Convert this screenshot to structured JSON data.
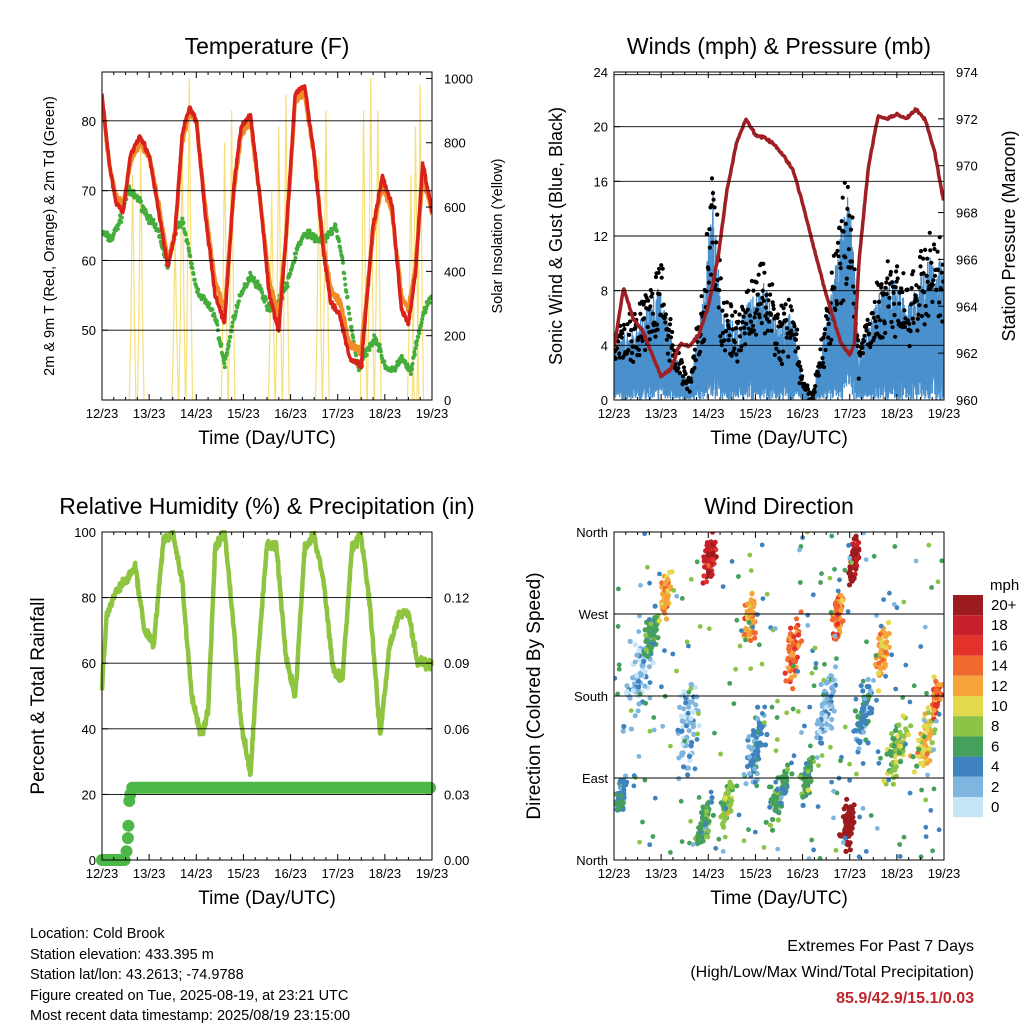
{
  "days": [
    "12/23",
    "13/23",
    "14/23",
    "15/23",
    "16/23",
    "17/23",
    "18/23",
    "19/23"
  ],
  "palette": {
    "red": "#d9221c",
    "orange": "#f28c28",
    "green": "#44ad3c",
    "yellow": "#f7e07a",
    "blue": "#4a90cc",
    "black": "#000000",
    "maroon": "#a01f24",
    "rh": "#8ec43f",
    "precip": "#4db847",
    "extreme": "#c0262c"
  },
  "info": {
    "location": "Location: Cold Brook",
    "elevation": "Station elevation: 433.395 m",
    "latlon": "Station lat/lon: 43.2613; -74.9788",
    "created": "Figure created on Tue, 2025-08-19, at 23:21 UTC",
    "recent": "Most recent data timestamp: 2025/08/19 23:15:00"
  },
  "extremes": {
    "title": "Extremes For Past 7 Days",
    "subtitle": "(High/Low/Max Wind/Total Precipitation)",
    "values": "85.9/42.9/15.1/0.03"
  },
  "chart_data": [
    {
      "id": "temperature",
      "type": "line",
      "title": "Temperature (F)",
      "xlabel": "Time (Day/UTC)",
      "ylabel": "2m & 9m T (Red, Orange) & 2m Td (Green)",
      "y2label": "Solar Insolation (Yellow)",
      "xlim": [
        0,
        7
      ],
      "ylim": [
        40,
        87
      ],
      "yticks": [
        50,
        60,
        70,
        80
      ],
      "y2lim": [
        0,
        1020
      ],
      "y2ticks": [
        0,
        200,
        400,
        600,
        800,
        1000
      ],
      "grid": true,
      "series": [
        {
          "name": "2m T",
          "color": "red",
          "x": [
            0,
            0.15,
            0.3,
            0.45,
            0.6,
            0.8,
            1.0,
            1.2,
            1.4,
            1.55,
            1.7,
            1.85,
            2.0,
            2.2,
            2.4,
            2.6,
            2.8,
            2.95,
            3.15,
            3.35,
            3.55,
            3.75,
            3.9,
            4.1,
            4.3,
            4.5,
            4.7,
            4.85,
            5.05,
            5.25,
            5.5,
            5.75,
            5.95,
            6.15,
            6.35,
            6.5,
            6.65,
            6.8,
            7.0
          ],
          "y": [
            84,
            74,
            68,
            67,
            75,
            78,
            75,
            67,
            59,
            64,
            78,
            82,
            80,
            66,
            55,
            51,
            71,
            79,
            81,
            69,
            55,
            50,
            63,
            84,
            85,
            75,
            61,
            54,
            52,
            46,
            45,
            65,
            72,
            68,
            53,
            51,
            58,
            74,
            67
          ]
        },
        {
          "name": "9m T",
          "color": "orange",
          "x": [
            0,
            0.15,
            0.3,
            0.45,
            0.6,
            0.8,
            1.0,
            1.2,
            1.4,
            1.55,
            1.7,
            1.85,
            2.0,
            2.2,
            2.4,
            2.6,
            2.8,
            2.95,
            3.15,
            3.35,
            3.55,
            3.75,
            3.9,
            4.1,
            4.3,
            4.5,
            4.7,
            4.85,
            5.05,
            5.25,
            5.5,
            5.75,
            5.95,
            6.15,
            6.35,
            6.5,
            6.65,
            6.8,
            7.0
          ],
          "y": [
            83,
            74,
            69,
            68,
            74,
            77,
            75,
            68,
            60,
            64,
            77,
            81,
            80,
            67,
            57,
            53,
            70,
            78,
            80,
            69,
            57,
            52,
            63,
            83,
            84,
            75,
            62,
            56,
            54,
            48,
            47,
            64,
            71,
            67,
            55,
            53,
            59,
            72,
            67
          ]
        },
        {
          "name": "2m Td",
          "color": "green",
          "x": [
            0,
            0.2,
            0.4,
            0.55,
            0.75,
            1.0,
            1.2,
            1.4,
            1.55,
            1.7,
            1.85,
            2.0,
            2.2,
            2.4,
            2.6,
            2.8,
            2.95,
            3.15,
            3.35,
            3.55,
            3.75,
            3.95,
            4.15,
            4.35,
            4.55,
            4.75,
            4.95,
            5.1,
            5.25,
            5.45,
            5.6,
            5.8,
            6.0,
            6.15,
            6.35,
            6.55,
            6.8,
            7.0
          ],
          "y": [
            64,
            63,
            66,
            70,
            69,
            66,
            64,
            59,
            64,
            66,
            61,
            56,
            54,
            52,
            45,
            52,
            55,
            58,
            56,
            53,
            54,
            57,
            62,
            64,
            63,
            63,
            65,
            60,
            52,
            44,
            47,
            49,
            45,
            44,
            46,
            44,
            52,
            55
          ]
        },
        {
          "name": "Solar Insolation",
          "color": "yellow",
          "axis": "y2",
          "peaks": [
            [
              0.65,
              700
            ],
            [
              0.82,
              780
            ],
            [
              1.55,
              500
            ],
            [
              1.7,
              800
            ],
            [
              1.85,
              1000
            ],
            [
              2.6,
              800
            ],
            [
              2.75,
              900
            ],
            [
              3.6,
              650
            ],
            [
              3.75,
              850
            ],
            [
              3.9,
              950
            ],
            [
              4.6,
              750
            ],
            [
              4.75,
              900
            ],
            [
              5.55,
              900
            ],
            [
              5.7,
              1000
            ],
            [
              5.85,
              900
            ],
            [
              6.55,
              700
            ],
            [
              6.65,
              850
            ],
            [
              6.75,
              980
            ]
          ]
        }
      ]
    },
    {
      "id": "winds",
      "type": "scatter",
      "title": "Winds (mph) & Pressure (mb)",
      "xlabel": "Time (Day/UTC)",
      "ylabel": "Sonic Wind & Gust (Blue, Black)",
      "y2label": "Station Pressure (Maroon)",
      "xlim": [
        0,
        7
      ],
      "ylim": [
        0,
        24
      ],
      "yticks": [
        0,
        4,
        8,
        12,
        16,
        20,
        24
      ],
      "y2lim": [
        960,
        974
      ],
      "y2ticks": [
        960,
        962,
        964,
        966,
        968,
        970,
        972,
        974
      ],
      "grid": true,
      "wind_envelope": {
        "x": [
          0,
          0.5,
          1.0,
          1.3,
          1.6,
          1.9,
          2.1,
          2.3,
          2.6,
          2.9,
          3.2,
          3.5,
          3.8,
          4.0,
          4.2,
          4.5,
          4.8,
          5.0,
          5.2,
          5.4,
          5.6,
          5.8,
          6.0,
          6.3,
          6.6,
          6.8,
          7.0
        ],
        "y": [
          4,
          5,
          8,
          3,
          1,
          7,
          14,
          6,
          5,
          7,
          8,
          5,
          6,
          1,
          0,
          5,
          11,
          15,
          3,
          5,
          7,
          8,
          8,
          7,
          9,
          10,
          9
        ]
      },
      "series": [
        {
          "name": "Wind",
          "color": "blue"
        },
        {
          "name": "Gust",
          "color": "black"
        },
        {
          "name": "Pressure",
          "color": "maroon",
          "axis": "y2",
          "x": [
            0,
            0.2,
            0.4,
            0.6,
            0.8,
            1.0,
            1.2,
            1.4,
            1.6,
            1.8,
            2.0,
            2.2,
            2.4,
            2.6,
            2.8,
            3.0,
            3.2,
            3.4,
            3.6,
            3.8,
            4.0,
            4.2,
            4.5,
            4.8,
            5.0,
            5.1,
            5.2,
            5.4,
            5.6,
            5.8,
            6.0,
            6.2,
            6.4,
            6.6,
            6.8,
            7.0
          ],
          "y": [
            962.2,
            964.8,
            963.5,
            963.0,
            962.0,
            961.0,
            961.3,
            962.4,
            962.3,
            962.8,
            964.0,
            966.0,
            969.0,
            971.0,
            972.0,
            971.3,
            971.2,
            970.9,
            970.4,
            969.8,
            968.4,
            966.8,
            964.5,
            962.5,
            961.9,
            962.4,
            966.0,
            970.0,
            972.1,
            972.0,
            972.2,
            972.0,
            972.4,
            972.0,
            970.6,
            968.4
          ]
        }
      ]
    },
    {
      "id": "rh",
      "type": "line",
      "title": "Relative Humidity (%) & Precipitation (in)",
      "xlabel": "Time (Day/UTC)",
      "ylabel": "Percent & Total Rainfall",
      "xlim": [
        0,
        7
      ],
      "ylim": [
        0,
        100
      ],
      "yticks": [
        0,
        20,
        40,
        60,
        80,
        100
      ],
      "y2lim": [
        0,
        0.15
      ],
      "y2ticks": [
        "0.00",
        "0.03",
        "0.06",
        "0.09",
        "0.12"
      ],
      "grid": true,
      "series": [
        {
          "name": "Relative Humidity",
          "color": "rh",
          "x": [
            0,
            0.1,
            0.3,
            0.5,
            0.7,
            0.9,
            1.1,
            1.3,
            1.5,
            1.7,
            1.9,
            2.1,
            2.25,
            2.4,
            2.6,
            2.8,
            2.95,
            3.15,
            3.3,
            3.5,
            3.7,
            3.9,
            4.1,
            4.3,
            4.5,
            4.7,
            4.9,
            5.1,
            5.3,
            5.5,
            5.7,
            5.9,
            6.1,
            6.3,
            6.5,
            6.7,
            6.9,
            7.0
          ],
          "y": [
            53,
            75,
            82,
            85,
            90,
            70,
            66,
            97,
            100,
            85,
            50,
            38,
            45,
            95,
            100,
            70,
            42,
            26,
            60,
            96,
            96,
            62,
            50,
            95,
            99,
            85,
            58,
            55,
            95,
            99,
            75,
            38,
            65,
            75,
            75,
            60,
            60,
            60
          ]
        },
        {
          "name": "Total Precipitation",
          "color": "precip",
          "axis": "y2",
          "x": [
            0,
            0.5,
            0.55,
            0.58,
            0.62,
            7.0
          ],
          "y": [
            0,
            0,
            0.01,
            0.027,
            0.033,
            0.033
          ]
        }
      ]
    },
    {
      "id": "direction",
      "type": "scatter",
      "title": "Wind Direction",
      "xlabel": "Time (Day/UTC)",
      "ylabel": "Direction (Colored By Speed)",
      "xlim": [
        0,
        7
      ],
      "ylim": [
        0,
        360
      ],
      "ytick_labels": [
        "North",
        "East",
        "South",
        "West",
        "North"
      ],
      "grid": true,
      "clusters": [
        [
          0.15,
          70,
          0.3,
          40,
          2
        ],
        [
          0.5,
          200,
          0.9,
          120,
          1
        ],
        [
          0.8,
          250,
          0.4,
          60,
          3
        ],
        [
          1.1,
          290,
          0.35,
          60,
          6
        ],
        [
          1.6,
          150,
          0.7,
          160,
          1
        ],
        [
          1.9,
          40,
          0.5,
          60,
          3
        ],
        [
          2.05,
          330,
          0.45,
          60,
          9
        ],
        [
          2.4,
          60,
          0.35,
          60,
          4
        ],
        [
          2.9,
          270,
          0.35,
          80,
          6
        ],
        [
          3.0,
          120,
          0.6,
          100,
          2
        ],
        [
          3.5,
          70,
          0.6,
          60,
          3
        ],
        [
          3.8,
          230,
          0.45,
          90,
          7
        ],
        [
          4.1,
          90,
          0.4,
          60,
          3
        ],
        [
          4.5,
          170,
          0.6,
          100,
          1
        ],
        [
          4.75,
          270,
          0.3,
          60,
          7
        ],
        [
          4.95,
          40,
          0.35,
          80,
          11
        ],
        [
          5.1,
          330,
          0.3,
          60,
          10
        ],
        [
          5.3,
          160,
          0.6,
          100,
          2
        ],
        [
          5.7,
          230,
          0.4,
          80,
          6
        ],
        [
          6.0,
          120,
          0.8,
          80,
          4
        ],
        [
          6.6,
          130,
          0.7,
          80,
          5
        ],
        [
          6.85,
          180,
          0.3,
          60,
          7
        ]
      ],
      "legend": {
        "title": "mph",
        "labels": [
          "20+",
          "18",
          "16",
          "14",
          "12",
          "10",
          "8",
          "6",
          "4",
          "2",
          "0"
        ],
        "colors": [
          "#9b1b1e",
          "#c8202a",
          "#e3312b",
          "#f06a30",
          "#f6a33a",
          "#e3d94e",
          "#8cc447",
          "#44a05a",
          "#3f82c0",
          "#7fb6e0",
          "#c5e4f5"
        ]
      }
    }
  ]
}
